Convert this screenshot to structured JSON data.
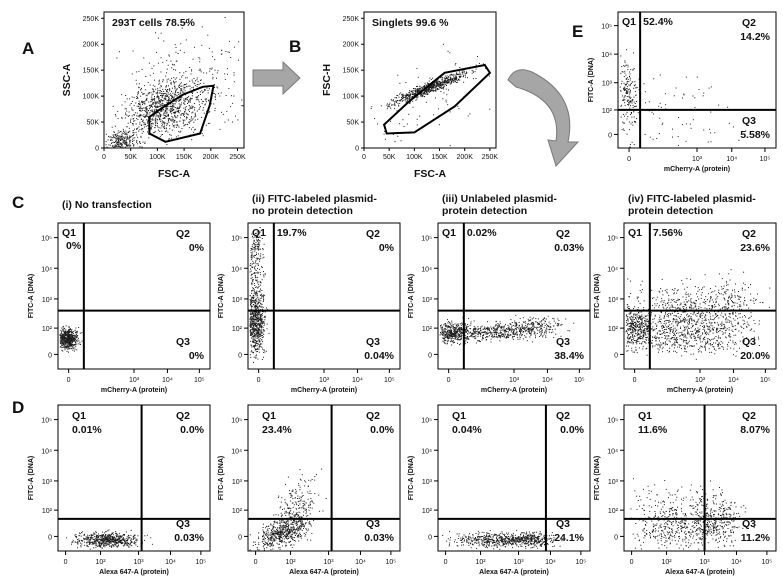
{
  "panel_letters": {
    "a": "A",
    "b": "B",
    "c": "C",
    "d": "D",
    "e": "E"
  },
  "colors": {
    "dots": "#1a1a1a",
    "arrow_fill": "#a6a6a6",
    "arrow_stroke": "#7a7a7a",
    "axes": "#000000"
  },
  "chart_data": [
    {
      "id": "A",
      "type": "scatter",
      "gate_label": "293T cells 78.5%",
      "xlabel": "FSC-A",
      "ylabel": "SSC-A",
      "x_ticks": [
        "0",
        "50K",
        "100K",
        "150K",
        "200K",
        "250K"
      ],
      "y_ticks": [
        "0",
        "50K",
        "100K",
        "150K",
        "200K",
        "250K"
      ],
      "xlim": [
        0,
        262144
      ],
      "ylim": [
        0,
        262144
      ],
      "gate_polygon": [
        [
          85000,
          60000
        ],
        [
          110000,
          78000
        ],
        [
          148000,
          103000
        ],
        [
          185000,
          118000
        ],
        [
          205000,
          120000
        ],
        [
          198000,
          82000
        ],
        [
          180000,
          28000
        ],
        [
          115000,
          12000
        ],
        [
          85000,
          28000
        ]
      ]
    },
    {
      "id": "B",
      "type": "scatter",
      "gate_label": "Singlets 99.6 %",
      "xlabel": "FSC-A",
      "ylabel": "FSC-H",
      "x_ticks": [
        "0",
        "50K",
        "100K",
        "150K",
        "200K",
        "250K"
      ],
      "y_ticks": [
        "0",
        "50K",
        "100K",
        "150K",
        "200K",
        "250K"
      ],
      "xlim": [
        0,
        262144
      ],
      "ylim": [
        0,
        262144
      ],
      "gate_polygon": [
        [
          45000,
          28000
        ],
        [
          40000,
          45000
        ],
        [
          90000,
          90000
        ],
        [
          160000,
          145000
        ],
        [
          240000,
          160000
        ],
        [
          250000,
          145000
        ],
        [
          180000,
          80000
        ],
        [
          100000,
          30000
        ]
      ]
    },
    {
      "id": "E",
      "type": "scatter",
      "xlabel": "mCherry-A (protein)",
      "ylabel": "FITC-A (DNA)",
      "x_ticks": [
        "0",
        "10³",
        "10⁴",
        "10⁵"
      ],
      "y_ticks": [
        "0",
        "10²",
        "10³",
        "10⁴",
        "10⁵"
      ],
      "quadrants": {
        "Q1": "52.4%",
        "Q2": "14.2%",
        "Q3": "5.58%"
      }
    },
    {
      "id": "C-i",
      "type": "scatter",
      "title": "(i) No transfection",
      "xlabel": "mCherry-A (protein)",
      "ylabel": "FITC-A (DNA)",
      "x_ticks": [
        "0",
        "10³",
        "10⁴",
        "10⁵"
      ],
      "y_ticks": [
        "0",
        "10²",
        "10³",
        "10⁴",
        "10⁵"
      ],
      "quadrants": {
        "Q1": "0%",
        "Q2": "0%",
        "Q3": "0%"
      }
    },
    {
      "id": "C-ii",
      "type": "scatter",
      "title": [
        "(ii) FITC-labeled plasmid-",
        "no protein detection"
      ],
      "xlabel": "mCherry-A (protein)",
      "ylabel": "FITC-A (DNA)",
      "x_ticks": [
        "0",
        "10³",
        "10⁴",
        "10⁵"
      ],
      "y_ticks": [
        "0",
        "10²",
        "10³",
        "10⁴",
        "10⁵"
      ],
      "quadrants": {
        "Q1": "19.7%",
        "Q2": "0%",
        "Q3": "0.04%"
      }
    },
    {
      "id": "C-iii",
      "type": "scatter",
      "title": [
        "(iii) Unlabeled plasmid-",
        "protein detection"
      ],
      "xlabel": "mCherry-A (protein)",
      "ylabel": "FITC-A (DNA)",
      "x_ticks": [
        "0",
        "10³",
        "10⁴",
        "10⁵"
      ],
      "y_ticks": [
        "0",
        "10²",
        "10³",
        "10⁴",
        "10⁵"
      ],
      "quadrants": {
        "Q1": "0.02%",
        "Q2": "0.03%",
        "Q3": "38.4%"
      }
    },
    {
      "id": "C-iv",
      "type": "scatter",
      "title": [
        "(iv) FITC-labeled plasmid-",
        "protein detection"
      ],
      "xlabel": "mCherry-A (protein)",
      "ylabel": "FITC-A (DNA)",
      "x_ticks": [
        "0",
        "10³",
        "10⁴",
        "10⁵"
      ],
      "y_ticks": [
        "0",
        "10²",
        "10³",
        "10⁴",
        "10⁵"
      ],
      "quadrants": {
        "Q1": "7.56%",
        "Q2": "23.6%",
        "Q3": "20.0%"
      }
    },
    {
      "id": "D-i",
      "type": "scatter",
      "xlabel": "Alexa 647-A (protein)",
      "ylabel": "FITC-A (DNA)",
      "x_ticks": [
        "0",
        "10²",
        "10³",
        "10⁴",
        "10⁵"
      ],
      "y_ticks": [
        "0",
        "10²",
        "10³",
        "10⁴",
        "10⁵"
      ],
      "quadrants": {
        "Q1": "0.01%",
        "Q2": "0.0%",
        "Q3": "0.03%"
      }
    },
    {
      "id": "D-ii",
      "type": "scatter",
      "xlabel": "Alexa 647-A (protein)",
      "ylabel": "FITC-A (DNA)",
      "x_ticks": [
        "0",
        "10²",
        "10³",
        "10⁴",
        "10⁵"
      ],
      "y_ticks": [
        "0",
        "10²",
        "10³",
        "10⁴",
        "10⁵"
      ],
      "quadrants": {
        "Q1": "23.4%",
        "Q2": "0.0%",
        "Q3": "0.03%"
      }
    },
    {
      "id": "D-iii",
      "type": "scatter",
      "xlabel": "Alexa 647-A (protein)",
      "ylabel": "FITC-A (DNA)",
      "x_ticks": [
        "0",
        "10²",
        "10³",
        "10⁴",
        "10⁵"
      ],
      "y_ticks": [
        "0",
        "10²",
        "10³",
        "10⁴",
        "10⁵"
      ],
      "quadrants": {
        "Q1": "0.04%",
        "Q2": "0.0%",
        "Q3": "24.1%"
      }
    },
    {
      "id": "D-iv",
      "type": "scatter",
      "xlabel": "Alexa 647-A (protein)",
      "ylabel": "FITC-A (DNA)",
      "x_ticks": [
        "0",
        "10²",
        "10³",
        "10⁴",
        "10⁵"
      ],
      "y_ticks": [
        "0",
        "10²",
        "10³",
        "10⁴",
        "10⁵"
      ],
      "quadrants": {
        "Q1": "11.6%",
        "Q2": "8.07%",
        "Q3": "11.2%"
      }
    }
  ]
}
